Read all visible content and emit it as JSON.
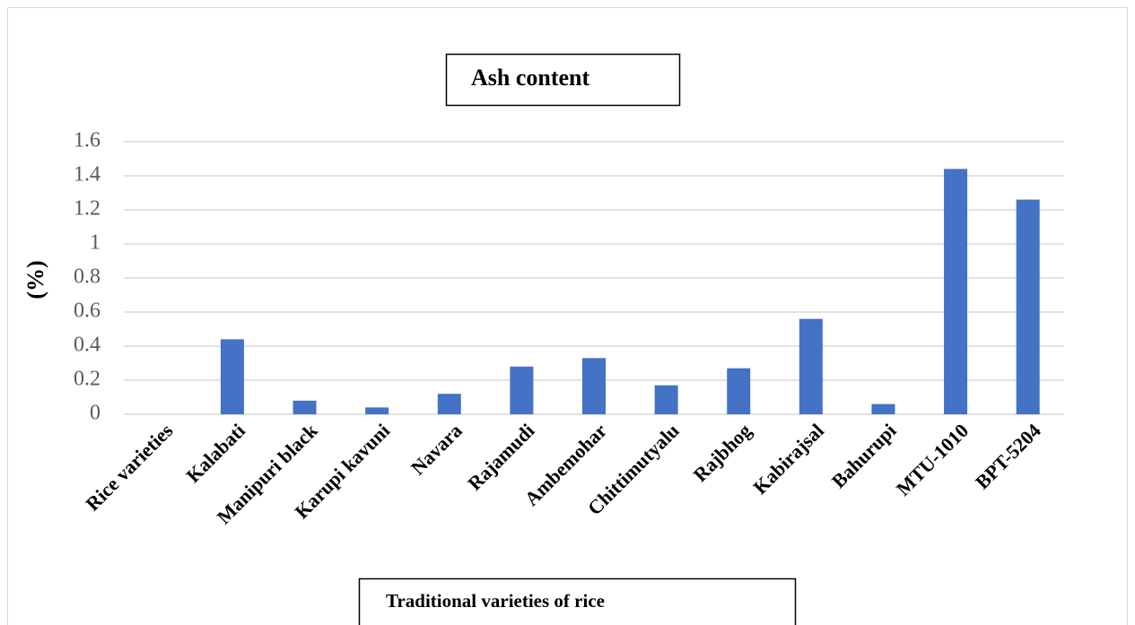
{
  "chart_data": {
    "type": "bar",
    "title": "Ash content",
    "x_label": "Traditional varieties of rice",
    "y_label": "(%)",
    "categories": [
      "Rice varieties",
      "Kalabati",
      "Manipuri black",
      "Karupi kavuni",
      "Navara",
      "Rajamudi",
      "Ambemohar",
      "Chittimutyalu",
      "Rajbhog",
      "Kabirajsal",
      "Bahurupi",
      "MTU-1010",
      "BPT-5204"
    ],
    "values": [
      null,
      0.44,
      0.08,
      0.04,
      0.12,
      0.28,
      0.33,
      0.17,
      0.27,
      0.56,
      0.06,
      1.44,
      1.26
    ],
    "color": "#4472c4",
    "ylim": [
      0,
      1.6
    ],
    "yticks": [
      0,
      0.2,
      0.4,
      0.6,
      0.8,
      1,
      1.2,
      1.4,
      1.6
    ],
    "grid": true
  }
}
